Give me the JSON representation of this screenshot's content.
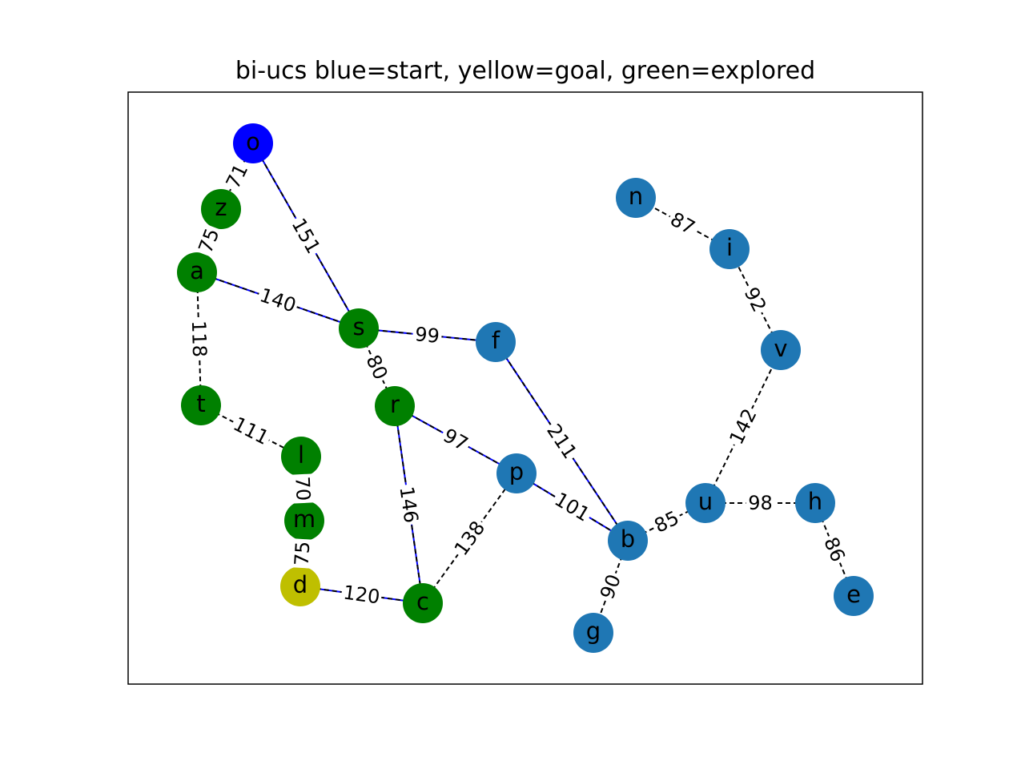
{
  "figure": {
    "title": "bi-ucs blue=start, yellow=goal, green=explored"
  },
  "colors": {
    "start": "#0000ff",
    "goal": "#bfbf00",
    "explored": "#008000",
    "unexplored": "#1f77b4",
    "path_edge": "#0000ff",
    "edge_dash": "#000000",
    "frame": "#000000",
    "background": "#ffffff"
  },
  "graph": {
    "nodes": [
      {
        "id": "o",
        "label": "o",
        "status": "start"
      },
      {
        "id": "z",
        "label": "z",
        "status": "explored"
      },
      {
        "id": "a",
        "label": "a",
        "status": "explored"
      },
      {
        "id": "s",
        "label": "s",
        "status": "explored"
      },
      {
        "id": "t",
        "label": "t",
        "status": "explored"
      },
      {
        "id": "l",
        "label": "l",
        "status": "explored"
      },
      {
        "id": "m",
        "label": "m",
        "status": "explored"
      },
      {
        "id": "d",
        "label": "d",
        "status": "goal"
      },
      {
        "id": "r",
        "label": "r",
        "status": "explored"
      },
      {
        "id": "c",
        "label": "c",
        "status": "explored"
      },
      {
        "id": "f",
        "label": "f",
        "status": "unexplored"
      },
      {
        "id": "p",
        "label": "p",
        "status": "unexplored"
      },
      {
        "id": "b",
        "label": "b",
        "status": "unexplored"
      },
      {
        "id": "g",
        "label": "g",
        "status": "unexplored"
      },
      {
        "id": "u",
        "label": "u",
        "status": "unexplored"
      },
      {
        "id": "h",
        "label": "h",
        "status": "unexplored"
      },
      {
        "id": "e",
        "label": "e",
        "status": "unexplored"
      },
      {
        "id": "v",
        "label": "v",
        "status": "unexplored"
      },
      {
        "id": "i",
        "label": "i",
        "status": "unexplored"
      },
      {
        "id": "n",
        "label": "n",
        "status": "unexplored"
      }
    ],
    "edges": [
      {
        "from": "o",
        "to": "z",
        "weight": "71",
        "highlighted": false
      },
      {
        "from": "o",
        "to": "s",
        "weight": "151",
        "highlighted": true
      },
      {
        "from": "z",
        "to": "a",
        "weight": "75",
        "highlighted": false
      },
      {
        "from": "a",
        "to": "s",
        "weight": "140",
        "highlighted": true
      },
      {
        "from": "a",
        "to": "t",
        "weight": "118",
        "highlighted": false
      },
      {
        "from": "s",
        "to": "f",
        "weight": "99",
        "highlighted": true
      },
      {
        "from": "s",
        "to": "r",
        "weight": "80",
        "highlighted": false
      },
      {
        "from": "t",
        "to": "l",
        "weight": "111",
        "highlighted": false
      },
      {
        "from": "l",
        "to": "m",
        "weight": "70",
        "highlighted": false
      },
      {
        "from": "m",
        "to": "d",
        "weight": "75",
        "highlighted": false
      },
      {
        "from": "d",
        "to": "c",
        "weight": "120",
        "highlighted": true
      },
      {
        "from": "r",
        "to": "c",
        "weight": "146",
        "highlighted": true
      },
      {
        "from": "r",
        "to": "p",
        "weight": "97",
        "highlighted": true
      },
      {
        "from": "c",
        "to": "p",
        "weight": "138",
        "highlighted": false
      },
      {
        "from": "f",
        "to": "b",
        "weight": "211",
        "highlighted": true
      },
      {
        "from": "p",
        "to": "b",
        "weight": "101",
        "highlighted": true
      },
      {
        "from": "b",
        "to": "g",
        "weight": "90",
        "highlighted": false
      },
      {
        "from": "b",
        "to": "u",
        "weight": "85",
        "highlighted": false
      },
      {
        "from": "u",
        "to": "h",
        "weight": "98",
        "highlighted": false
      },
      {
        "from": "h",
        "to": "e",
        "weight": "86",
        "highlighted": false
      },
      {
        "from": "u",
        "to": "v",
        "weight": "142",
        "highlighted": false
      },
      {
        "from": "v",
        "to": "i",
        "weight": "92",
        "highlighted": false
      },
      {
        "from": "i",
        "to": "n",
        "weight": "87",
        "highlighted": false
      }
    ]
  }
}
